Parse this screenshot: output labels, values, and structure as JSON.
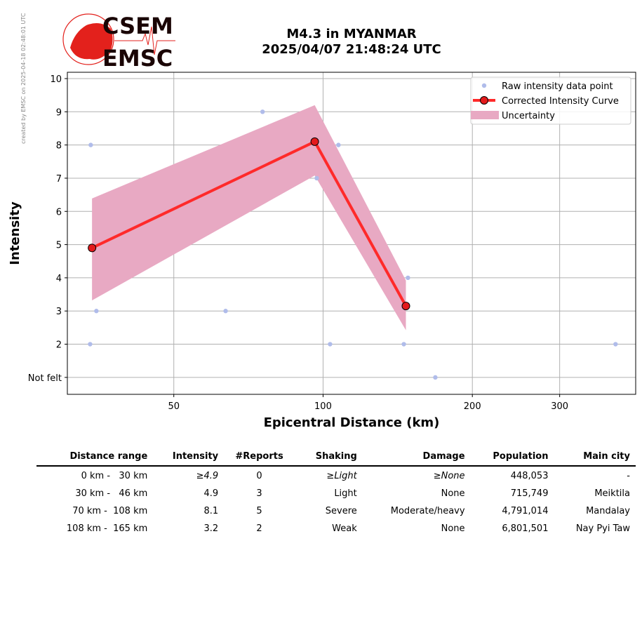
{
  "side_note": "created by EMSC on 2025-04-18 02:48:01 UTC",
  "logo": {
    "top": "CSEM",
    "bottom": "EMSC"
  },
  "colors": {
    "raw": "#b0bcea",
    "curve": "#ff2a2a",
    "marker": "#e31a1c",
    "uncertainty": "#e8a9c3",
    "grid": "#b0b0b0"
  },
  "chart_data": {
    "type": "line",
    "title": "M4.3 in MYANMAR",
    "subtitle": "2025/04/07 21:48:24 UTC",
    "xlabel": "Epicentral Distance (km)",
    "ylabel": "Intensity",
    "xscale": "log",
    "xlim": [
      30.5,
      427
    ],
    "ylim": [
      0.49,
      10.19
    ],
    "xticks": [
      50,
      100,
      200,
      300
    ],
    "xtick_labels": [
      "50",
      "100",
      "200",
      "300"
    ],
    "yticks": [
      1,
      2,
      3,
      4,
      5,
      6,
      7,
      8,
      9,
      10
    ],
    "ytick_labels": [
      "Not felt",
      "2",
      "3",
      "4",
      "5",
      "6",
      "7",
      "8",
      "9",
      "10"
    ],
    "grid": true,
    "legend_position": "top-right",
    "legend": [
      "Raw intensity data point",
      "Corrected Intensity Curve",
      "Uncertainty"
    ],
    "raw_points": [
      {
        "x": 34.0,
        "y": 8
      },
      {
        "x": 75.5,
        "y": 9
      },
      {
        "x": 107.4,
        "y": 8
      },
      {
        "x": 97.1,
        "y": 7
      },
      {
        "x": 34.9,
        "y": 3
      },
      {
        "x": 63.6,
        "y": 3
      },
      {
        "x": 148.3,
        "y": 4
      },
      {
        "x": 33.9,
        "y": 2
      },
      {
        "x": 103.3,
        "y": 2
      },
      {
        "x": 145.5,
        "y": 2
      },
      {
        "x": 388.9,
        "y": 2
      },
      {
        "x": 168.4,
        "y": 1
      }
    ],
    "curve": [
      {
        "x": 34.2,
        "y": 4.9
      },
      {
        "x": 96.2,
        "y": 8.1
      },
      {
        "x": 146.9,
        "y": 3.15
      }
    ],
    "uncertainty": [
      {
        "x": 34.2,
        "low": 3.32,
        "high": 6.39
      },
      {
        "x": 96.2,
        "low": 7.08,
        "high": 9.2
      },
      {
        "x": 146.9,
        "low": 2.42,
        "high": 3.92
      }
    ]
  },
  "table": {
    "headers": [
      "Distance range",
      "Intensity",
      "#Reports",
      "Shaking",
      "Damage",
      "Population",
      "Main city"
    ],
    "rows": [
      [
        "0 km -   30 km",
        "≥4.9",
        "0",
        "≥Light",
        "≥None",
        "448,053",
        "-"
      ],
      [
        "30 km -   46 km",
        "4.9",
        "3",
        "Light",
        "None",
        "715,749",
        "Meiktila"
      ],
      [
        "70 km -  108 km",
        "8.1",
        "5",
        "Severe",
        "Moderate/heavy",
        "4,791,014",
        "Mandalay"
      ],
      [
        "108 km -  165 km",
        "3.2",
        "2",
        "Weak",
        "None",
        "6,801,501",
        "Nay Pyi Taw"
      ]
    ]
  }
}
